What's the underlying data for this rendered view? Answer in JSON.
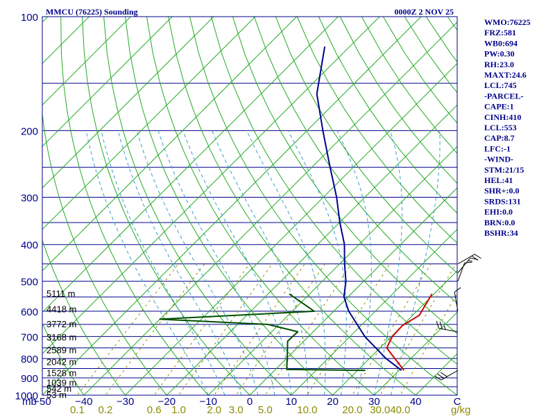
{
  "header": {
    "station": "MMCU (76225) Sounding",
    "time": "0000Z  2 NOV 25"
  },
  "stats": [
    "WMO:76225",
    "FRZ:581",
    "WB0:694",
    "PW:0.30",
    "RH:23.0",
    "MAXT:24.6",
    "LCL:745",
    "-PARCEL-",
    "CAPE:1",
    "CINH:410",
    "LCL:553",
    "CAP:8.7",
    "LFC:-1",
    "-WIND-",
    "STM:21/15",
    "HEL:41",
    "SHR+:0.0",
    "SRDS:131",
    "EHI:0.0",
    "BRN:0.0",
    "BSHR:34"
  ],
  "colors": {
    "isobar": "#00008b",
    "isotherm": "#22aa22",
    "dry_adiabat": "#22aa22",
    "moist_adiabat": "#3aa0c8",
    "mixing_ratio": "#8b8b00",
    "temperature": "#00008b",
    "dewpoint": "#005000",
    "parcel": "#cc0000",
    "wind": "#000000"
  },
  "chart_data": {
    "type": "skew-t",
    "title": "MMCU (76225) Sounding",
    "subtitle": "0000Z  2 NOV 25",
    "pressure_unit": "mb",
    "temperature_unit": "C",
    "mixing_ratio_unit": "g/kg",
    "pressure_range": [
      1000,
      100
    ],
    "temperature_range": [
      -50,
      50
    ],
    "pressure_ticks": [
      100,
      200,
      300,
      400,
      500,
      600,
      700,
      800,
      900,
      1000
    ],
    "temperature_ticks": [
      -50,
      -40,
      -30,
      -20,
      -10,
      0,
      10,
      20,
      30,
      40,
      50
    ],
    "temperature_tick_labels": [
      "−50",
      "−40",
      "−30",
      "−20",
      "−10",
      "0",
      "10",
      "20",
      "30",
      "40",
      "C"
    ],
    "mixing_ratio_ticks": [
      "0.1",
      "0.2",
      "0.6",
      "1.0",
      "2.0",
      "3.0",
      "5.0",
      "10.0",
      "20.0",
      "30.0",
      "40.0"
    ],
    "mixing_ratio_values": [
      0.1,
      0.2,
      0.6,
      1.0,
      2.0,
      3.0,
      5.0,
      10.0,
      20.0,
      30.0,
      40.0
    ],
    "height_labels": [
      {
        "label": "5111 m",
        "p": 538
      },
      {
        "label": "4418 m",
        "p": 592
      },
      {
        "label": "3772 m",
        "p": 647
      },
      {
        "label": "3168 m",
        "p": 702
      },
      {
        "label": "2589 m",
        "p": 758
      },
      {
        "label": "2042 m",
        "p": 815
      },
      {
        "label": "1528 m",
        "p": 872
      },
      {
        "label": "1039 m",
        "p": 925
      },
      {
        "label": "542 m",
        "p": 958
      },
      {
        "label": "53 m",
        "p": 995
      }
    ],
    "series": [
      {
        "name": "temperature",
        "points": [
          {
            "p": 860,
            "t": 30.6
          },
          {
            "p": 800,
            "t": 24.0
          },
          {
            "p": 700,
            "t": 13.6
          },
          {
            "p": 600,
            "t": 3.6
          },
          {
            "p": 550,
            "t": -1.0
          },
          {
            "p": 500,
            "t": -4.3
          },
          {
            "p": 450,
            "t": -8.8
          },
          {
            "p": 400,
            "t": -13.5
          },
          {
            "p": 350,
            "t": -19.9
          },
          {
            "p": 300,
            "t": -26.8
          },
          {
            "p": 250,
            "t": -35.6
          },
          {
            "p": 200,
            "t": -46.2
          },
          {
            "p": 160,
            "t": -56.5
          },
          {
            "p": 120,
            "t": -66.0
          }
        ]
      },
      {
        "name": "dewpoint",
        "points": [
          {
            "p": 860,
            "t": 21.9
          },
          {
            "p": 855,
            "t": 2.7
          },
          {
            "p": 790,
            "t": -0.3
          },
          {
            "p": 720,
            "t": -3.9
          },
          {
            "p": 680,
            "t": -3.7
          },
          {
            "p": 650,
            "t": -12.7
          },
          {
            "p": 630,
            "t": -40.0
          },
          {
            "p": 600,
            "t": -4.7
          },
          {
            "p": 540,
            "t": -14.9
          }
        ]
      },
      {
        "name": "parcel",
        "points": [
          {
            "p": 860,
            "t": 31.2
          },
          {
            "p": 750,
            "t": 21.6
          },
          {
            "p": 700,
            "t": 20.2
          },
          {
            "p": 655,
            "t": 20.0
          },
          {
            "p": 615,
            "t": 21.6
          },
          {
            "p": 540,
            "t": 19.5
          }
        ]
      }
    ],
    "winds": [
      {
        "p": 860,
        "dir": 240,
        "kt": 30
      },
      {
        "p": 680,
        "dir": 280,
        "kt": 25
      },
      {
        "p": 600,
        "dir": 350,
        "kt": 10
      },
      {
        "p": 500,
        "dir": 20,
        "kt": 10
      },
      {
        "p": 475,
        "dir": 40,
        "kt": 15
      },
      {
        "p": 450,
        "dir": 60,
        "kt": 20
      }
    ]
  }
}
